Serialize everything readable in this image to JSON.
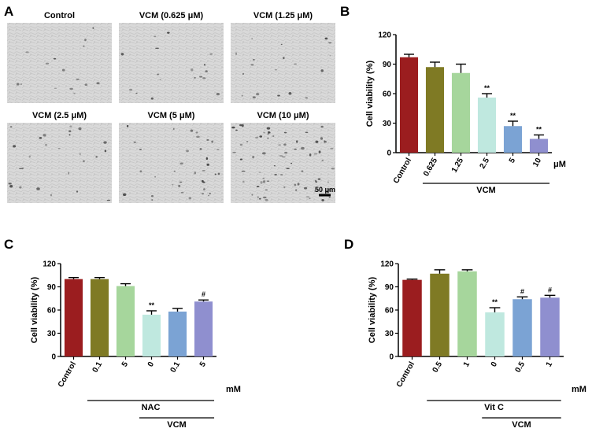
{
  "panel_a": {
    "label": "A",
    "images": [
      {
        "caption": "Control",
        "density": 0.05
      },
      {
        "caption": "VCM (0.625 μM)",
        "density": 0.08
      },
      {
        "caption": "VCM (1.25 μM)",
        "density": 0.1
      },
      {
        "caption": "VCM (2.5 μM)",
        "density": 0.18
      },
      {
        "caption": "VCM (5 μM)",
        "density": 0.3
      },
      {
        "caption": "VCM (10 μM)",
        "density": 0.75
      }
    ],
    "scale_bar": "50 μm"
  },
  "chart_data": [
    {
      "panel": "B",
      "type": "bar",
      "categories": [
        "Control",
        "0.625",
        "1.25",
        "2.5",
        "5",
        "10"
      ],
      "values": [
        97,
        87,
        81,
        56,
        27,
        14
      ],
      "errors": [
        3,
        5,
        9,
        4,
        5,
        4
      ],
      "annotations": [
        "",
        "",
        "",
        "**",
        "**",
        "**"
      ],
      "colors": [
        "#9b1d1f",
        "#7f7a24",
        "#a6d69c",
        "#bfe8df",
        "#7ba3d4",
        "#8f8fcf"
      ],
      "ylabel": "Cell viability (%)",
      "yticks": [
        0,
        30,
        60,
        90,
        120
      ],
      "ylim": [
        0,
        120
      ],
      "unit": "μM",
      "groups": [
        {
          "label": "VCM",
          "from": 1,
          "to": 5
        }
      ]
    },
    {
      "panel": "C",
      "type": "bar",
      "categories": [
        "Control",
        "0.1",
        "5",
        "0",
        "0.1",
        "5"
      ],
      "values": [
        100,
        100,
        91,
        54,
        58,
        71
      ],
      "errors": [
        2,
        2,
        3,
        5,
        4,
        2
      ],
      "annotations": [
        "",
        "",
        "",
        "**",
        "",
        "#"
      ],
      "colors": [
        "#9b1d1f",
        "#7f7a24",
        "#a6d69c",
        "#bfe8df",
        "#7ba3d4",
        "#8f8fcf"
      ],
      "ylabel": "Cell viability (%)",
      "yticks": [
        0,
        30,
        60,
        90,
        120
      ],
      "ylim": [
        0,
        120
      ],
      "unit": "mM",
      "groups": [
        {
          "label": "NAC",
          "from": 1,
          "to": 5
        },
        {
          "label": "VCM",
          "from": 3,
          "to": 5
        }
      ]
    },
    {
      "panel": "D",
      "type": "bar",
      "categories": [
        "Control",
        "0.5",
        "1",
        "0",
        "0.5",
        "1"
      ],
      "values": [
        99,
        107,
        110,
        57,
        74,
        76
      ],
      "errors": [
        1,
        5,
        2,
        6,
        3,
        3
      ],
      "annotations": [
        "",
        "",
        "",
        "**",
        "#",
        "#"
      ],
      "colors": [
        "#9b1d1f",
        "#7f7a24",
        "#a6d69c",
        "#bfe8df",
        "#7ba3d4",
        "#8f8fcf"
      ],
      "ylabel": "Cell viability (%)",
      "yticks": [
        0,
        30,
        60,
        90,
        120
      ],
      "ylim": [
        0,
        120
      ],
      "unit": "mM",
      "groups": [
        {
          "label": "Vit C",
          "from": 1,
          "to": 5
        },
        {
          "label": "VCM",
          "from": 3,
          "to": 5
        }
      ]
    }
  ]
}
